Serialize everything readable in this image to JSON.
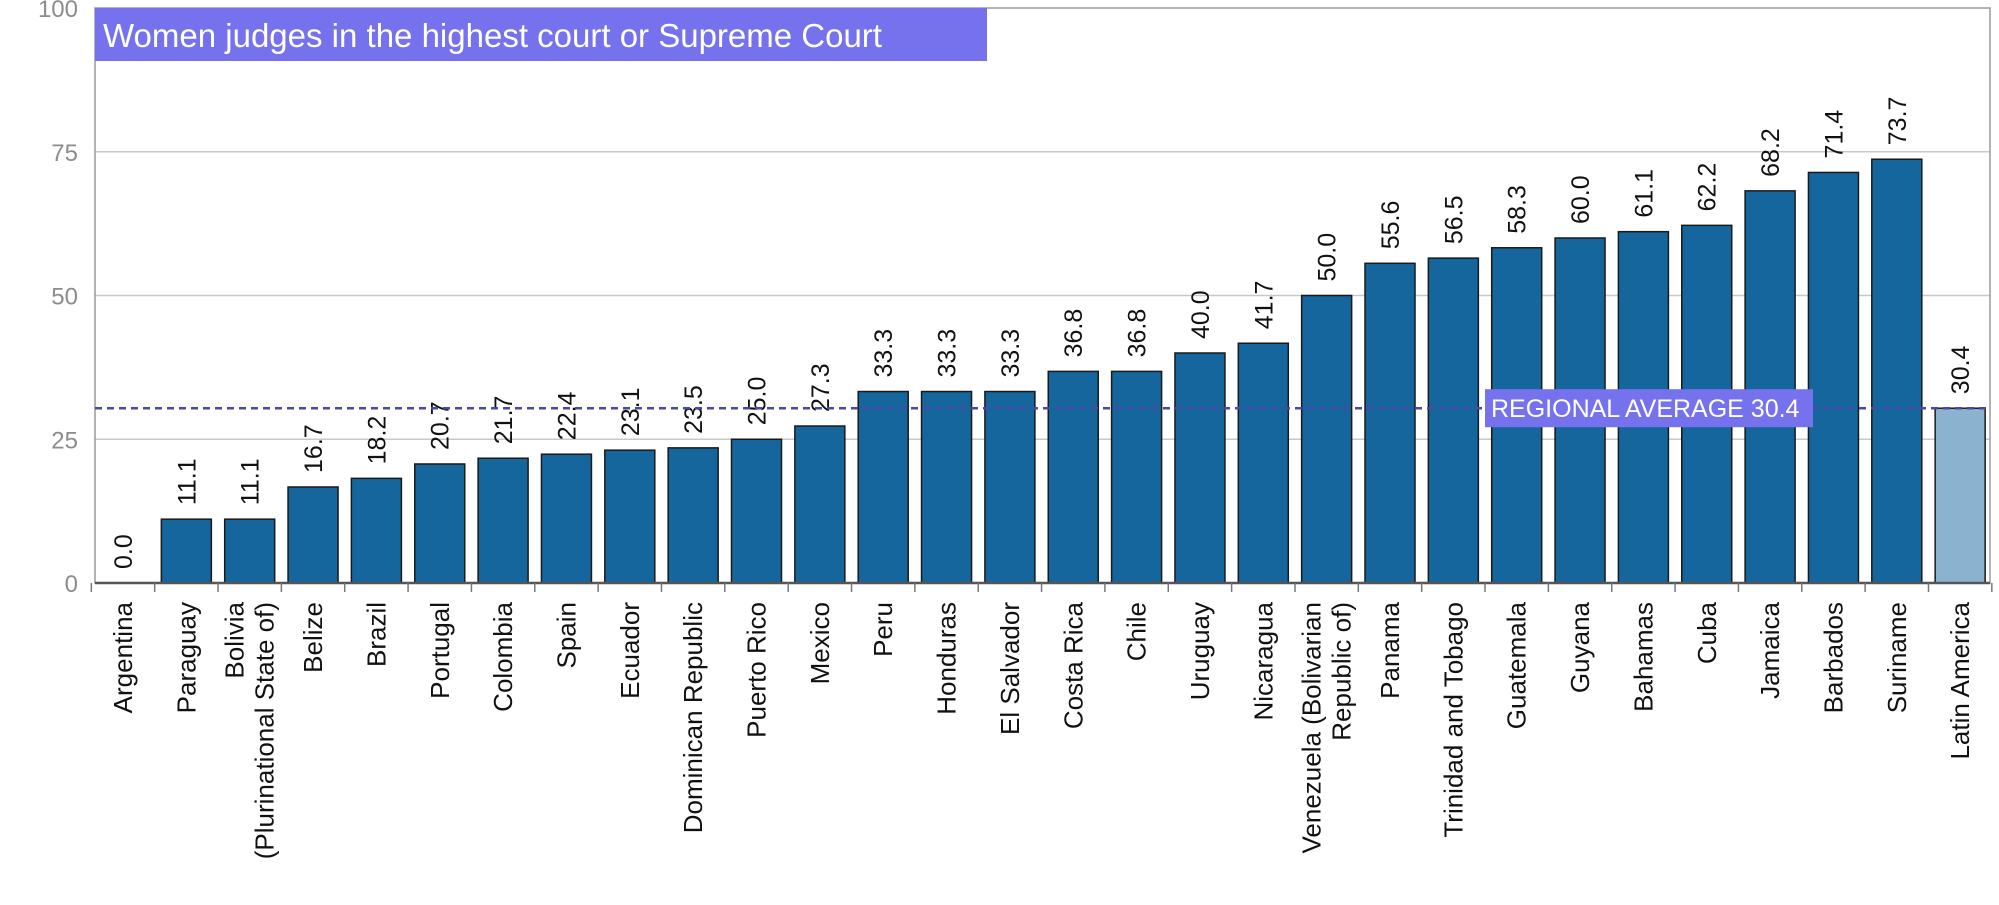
{
  "chart_data": {
    "type": "bar",
    "title": "Women judges in the highest court or Supreme Court",
    "xlabel": "",
    "ylabel": "",
    "ylim": [
      0,
      100
    ],
    "y_ticks": [
      0,
      25,
      50,
      75,
      100
    ],
    "grid": true,
    "legend": "none",
    "categories": [
      "Argentina",
      "Paraguay",
      "Bolivia|(Plurinational State of)",
      "Belize",
      "Brazil",
      "Portugal",
      "Colombia",
      "Spain",
      "Ecuador",
      "Dominican Republic",
      "Puerto Rico",
      "Mexico",
      "Peru",
      "Honduras",
      "El Salvador",
      "Costa Rica",
      "Chile",
      "Uruguay",
      "Nicaragua",
      "Venezuela (Bolivarian|Republic of)",
      "Panama",
      "Trinidad and Tobago",
      "Guatemala",
      "Guyana",
      "Bahamas",
      "Cuba",
      "Jamaica",
      "Barbados",
      "Suriname",
      "Latin America"
    ],
    "values": [
      0.0,
      11.1,
      11.1,
      16.7,
      18.2,
      20.7,
      21.7,
      22.4,
      23.1,
      23.5,
      25.0,
      27.3,
      33.3,
      33.3,
      33.3,
      36.8,
      36.8,
      40.0,
      41.7,
      50.0,
      55.6,
      56.5,
      58.3,
      60.0,
      61.1,
      62.2,
      68.2,
      71.4,
      73.7,
      30.4
    ],
    "value_labels": [
      "0.0",
      "11.1",
      "11.1",
      "16.7",
      "18.2",
      "20.7",
      "21.7",
      "22.4",
      "23.1",
      "23.5",
      "25.0",
      "27.3",
      "33.3",
      "33.3",
      "33.3",
      "36.8",
      "36.8",
      "40.0",
      "41.7",
      "50.0",
      "55.6",
      "56.5",
      "58.3",
      "60.0",
      "61.1",
      "62.2",
      "68.2",
      "71.4",
      "73.7",
      "30.4"
    ],
    "highlight_category": "Latin America",
    "reference_line": {
      "label": "REGIONAL AVERAGE 30.4",
      "value": 30.4
    },
    "colors": {
      "bar": "#15669c",
      "bar_highlight": "#8bb3d0",
      "bar_stroke": "#1a1a1a",
      "title_bg": "#7672ee",
      "reference_line": "#4a47a8",
      "grid": "#c8c8c8"
    }
  }
}
